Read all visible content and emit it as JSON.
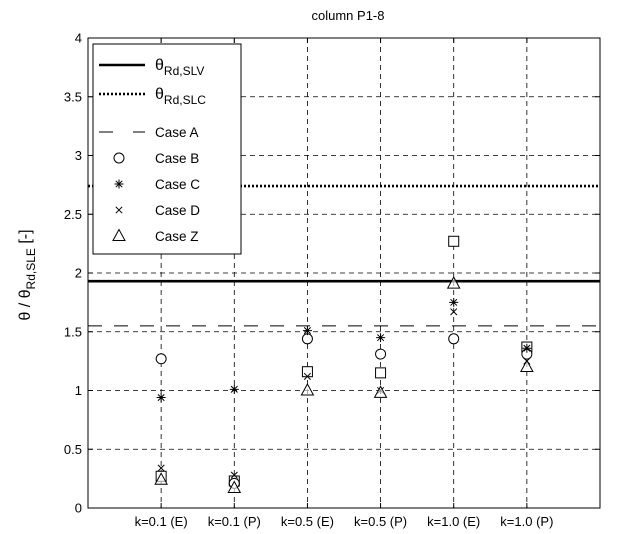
{
  "chart_data": {
    "type": "scatter",
    "title": "column P1-8",
    "ylabel": {
      "main": "θ / θ",
      "sub": "Rd,SLE",
      "suffix": " [-]"
    },
    "xlabel": "",
    "categories": [
      "k=0.1 (E)",
      "k=0.1 (P)",
      "k=0.5 (E)",
      "k=0.5 (P)",
      "k=1.0 (E)",
      "k=1.0 (P)"
    ],
    "ylim": [
      0,
      4
    ],
    "yticks": [
      "0",
      "0.5",
      "1",
      "1.5",
      "2",
      "2.5",
      "3",
      "3.5",
      "4"
    ],
    "grid": true,
    "legend_position": "top-left",
    "reference_lines": [
      {
        "label_main": "θ",
        "label_sub": "Rd,SLV",
        "value": 1.93,
        "style": "solid"
      },
      {
        "label_main": "θ",
        "label_sub": "Rd,SLC",
        "value": 2.74,
        "style": "dotted"
      },
      {
        "label_main": "Case A",
        "label_sub": "",
        "value": 1.55,
        "style": "dashed"
      }
    ],
    "series": [
      {
        "name": "Case B",
        "marker": "circle",
        "values": [
          1.27,
          0.21,
          1.44,
          1.31,
          1.44,
          1.31
        ]
      },
      {
        "name": "Case C",
        "marker": "star",
        "values": [
          0.94,
          1.01,
          1.51,
          1.45,
          1.75,
          1.36
        ]
      },
      {
        "name": "Case D",
        "marker": "x",
        "values": [
          0.34,
          0.28,
          1.12,
          1.0,
          1.67,
          1.25
        ]
      },
      {
        "name": "Case Z",
        "marker": "triangle",
        "values": [
          0.24,
          0.17,
          1.0,
          0.98,
          1.91,
          1.2
        ]
      },
      {
        "name": "",
        "marker": "square",
        "values": [
          0.27,
          0.23,
          1.16,
          1.15,
          2.27,
          1.37
        ]
      }
    ]
  }
}
